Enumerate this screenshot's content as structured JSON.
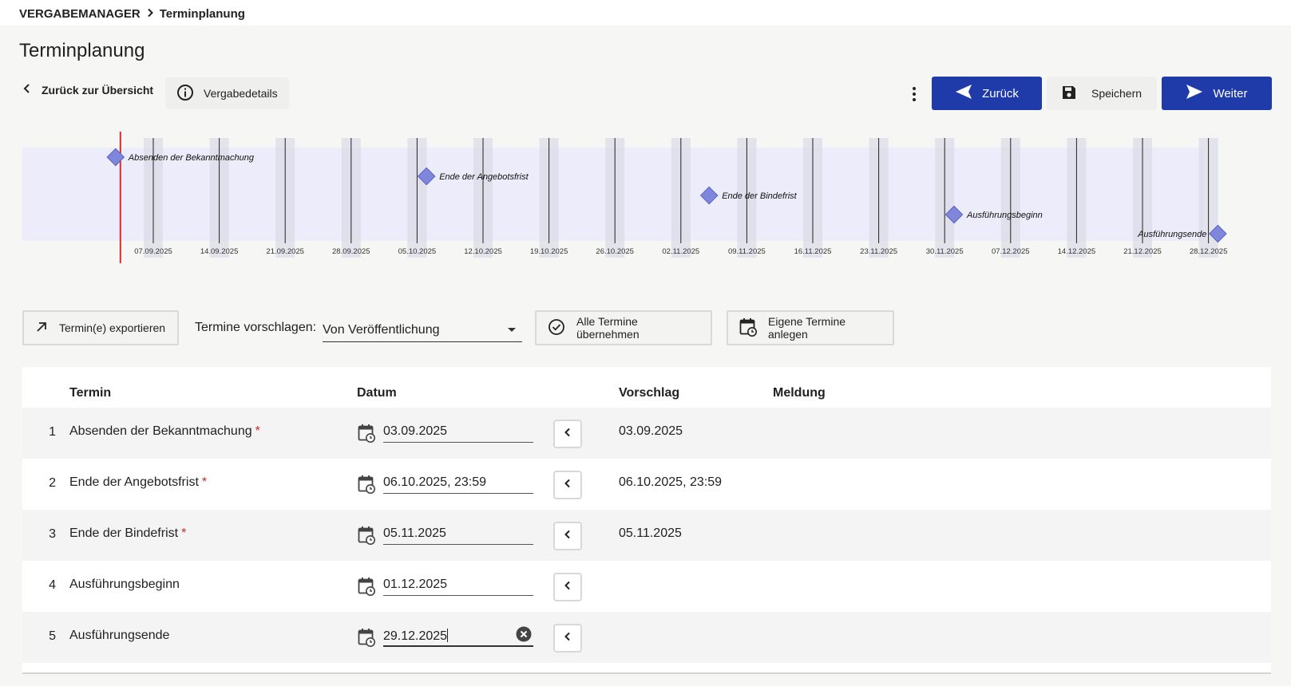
{
  "breadcrumb": {
    "root": "VERGABEMANAGER",
    "current": "Terminplanung"
  },
  "page": {
    "title": "Terminplanung"
  },
  "actions": {
    "back_overview": "Zurück zur Übersicht",
    "details": "Vergabedetails",
    "prev": "Zurück",
    "save": "Speichern",
    "next": "Weiter"
  },
  "timeline": {
    "ticks": [
      "07.09.2025",
      "14.09.2025",
      "21.09.2025",
      "28.09.2025",
      "05.10.2025",
      "12.10.2025",
      "19.10.2025",
      "26.10.2025",
      "02.11.2025",
      "09.11.2025",
      "16.11.2025",
      "23.11.2025",
      "30.11.2025",
      "07.12.2025",
      "14.12.2025",
      "21.12.2025",
      "28.12.2025"
    ],
    "milestones": [
      {
        "label": "Absenden der Bekanntmachung",
        "date": "03.09.2025",
        "lane": 0
      },
      {
        "label": "Ende der Angebotsfrist",
        "date": "06.10.2025",
        "lane": 1
      },
      {
        "label": "Ende der Bindefrist",
        "date": "05.11.2025",
        "lane": 2
      },
      {
        "label": "Ausführungsbeginn",
        "date": "01.12.2025",
        "lane": 3
      },
      {
        "label": "Ausführungsende",
        "date": "29.12.2025",
        "lane": 4
      }
    ],
    "today": "03.09.2025",
    "start_date": "2025-08-25",
    "colors": {
      "band": "#ececfb",
      "shade": "#dcdce8",
      "diamond": "#7f87dc",
      "today": "#d32f2f"
    }
  },
  "toolbar": {
    "export": "Termin(e) exportieren",
    "suggest_label": "Termine vorschlagen:",
    "suggest_value": "Von Veröffentlichung",
    "accept_all": "Alle Termine übernehmen",
    "own_dates": "Eigene Termine anlegen"
  },
  "table": {
    "headers": {
      "term": "Termin",
      "date": "Datum",
      "suggestion": "Vorschlag",
      "message": "Meldung"
    },
    "rows": [
      {
        "num": "1",
        "term": "Absenden der Bekanntmachung",
        "required": "*",
        "date": "03.09.2025",
        "suggestion": "03.09.2025",
        "message": ""
      },
      {
        "num": "2",
        "term": "Ende der Angebotsfrist",
        "required": "*",
        "date": "06.10.2025, 23:59",
        "suggestion": "06.10.2025, 23:59",
        "message": ""
      },
      {
        "num": "3",
        "term": "Ende der Bindefrist",
        "required": "*",
        "date": "05.11.2025",
        "suggestion": "05.11.2025",
        "message": ""
      },
      {
        "num": "4",
        "term": "Ausführungsbeginn",
        "required": "",
        "date": "01.12.2025",
        "suggestion": "",
        "message": ""
      },
      {
        "num": "5",
        "term": "Ausführungsende",
        "required": "",
        "date": "29.12.2025",
        "suggestion": "",
        "message": ""
      }
    ]
  },
  "colors": {
    "primary": "#1f3aa9",
    "required": "#c62828"
  }
}
